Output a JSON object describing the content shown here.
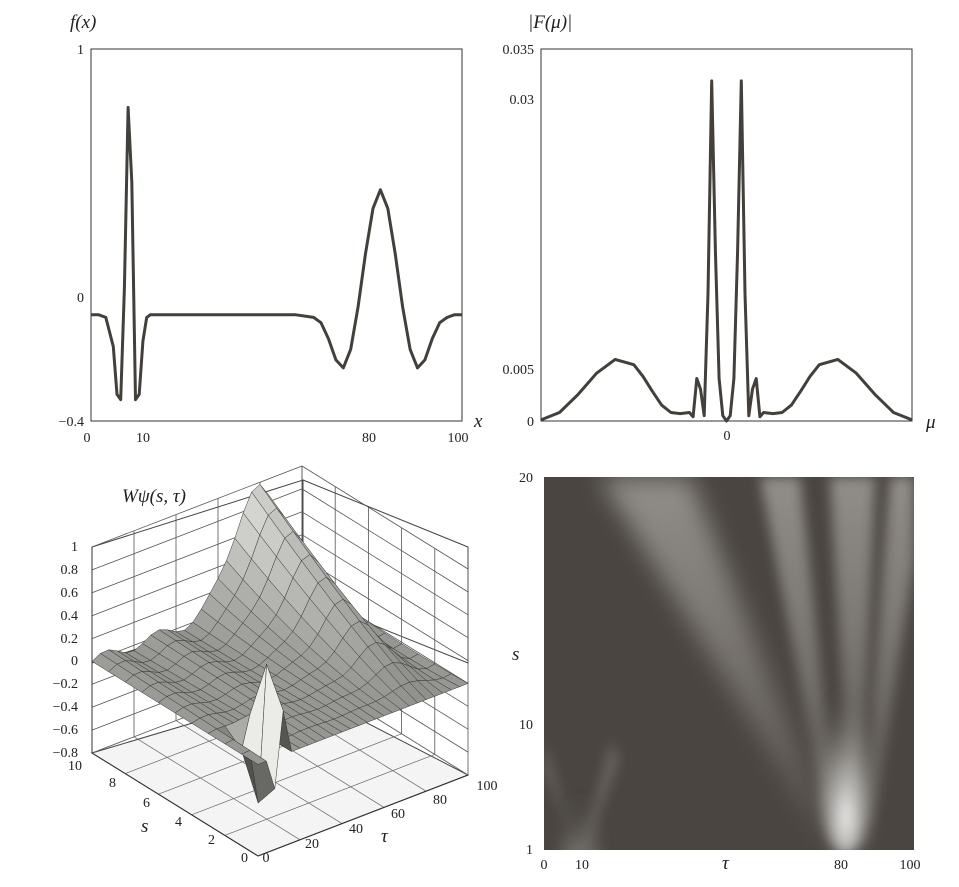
{
  "panels": {
    "signal": {
      "ylabel": "f(x)",
      "xlabel": "x",
      "yticks": [
        "1",
        "0",
        "−0.4"
      ],
      "xticks": [
        "0",
        "10",
        "80",
        "100"
      ]
    },
    "spectrum": {
      "ylabel": "|F(μ)|",
      "xlabel": "μ",
      "yticks": [
        "0.035",
        "0.03",
        "0.005",
        "0"
      ],
      "xticks": [
        "0"
      ]
    },
    "surface": {
      "zlabel": "Wψ(s, τ)",
      "zticks": [
        "1",
        "0.8",
        "0.6",
        "0.4",
        "0.2",
        "0",
        "−0.2",
        "−0.4",
        "−0.6",
        "−0.8"
      ],
      "sticks": [
        "10",
        "8",
        "6",
        "4",
        "2",
        "0"
      ],
      "tauticks": [
        "0",
        "20",
        "40",
        "60",
        "80",
        "100"
      ],
      "slabel": "s",
      "taulabel": "τ"
    },
    "heatmap": {
      "ylabel": "s",
      "xlabel": "τ",
      "yticks": [
        "20",
        "10",
        "1"
      ],
      "xticks": [
        "0",
        "10",
        "80",
        "100"
      ]
    }
  },
  "chart_data": [
    {
      "type": "line",
      "ylabel": "f(x)",
      "xlabel": "x",
      "xlim": [
        0,
        100
      ],
      "ylim": [
        -0.4,
        1
      ],
      "x": [
        0,
        2,
        4,
        6,
        7,
        8,
        9,
        10,
        11,
        12,
        13,
        14,
        15,
        16,
        18,
        20,
        30,
        40,
        50,
        55,
        60,
        62,
        64,
        66,
        68,
        70,
        72,
        74,
        76,
        78,
        80,
        82,
        84,
        86,
        88,
        90,
        92,
        94,
        96,
        98,
        100
      ],
      "y": [
        0,
        0,
        -0.01,
        -0.12,
        -0.3,
        -0.32,
        0.1,
        0.78,
        0.5,
        -0.32,
        -0.3,
        -0.1,
        -0.01,
        0,
        0,
        0,
        0,
        0,
        0,
        0,
        -0.01,
        -0.03,
        -0.09,
        -0.17,
        -0.2,
        -0.13,
        0.03,
        0.23,
        0.4,
        0.47,
        0.4,
        0.23,
        0.03,
        -0.13,
        -0.2,
        -0.17,
        -0.09,
        -0.03,
        -0.01,
        0,
        0
      ]
    },
    {
      "type": "line",
      "ylabel": "|F(μ)|",
      "xlabel": "μ",
      "ylim": [
        0,
        0.035
      ],
      "x": [
        -1,
        -0.9,
        -0.8,
        -0.7,
        -0.6,
        -0.5,
        -0.45,
        -0.4,
        -0.35,
        -0.3,
        -0.25,
        -0.2,
        -0.18,
        -0.16,
        -0.14,
        -0.12,
        -0.1,
        -0.08,
        -0.06,
        -0.04,
        -0.02,
        0,
        0.02,
        0.04,
        0.06,
        0.08,
        0.1,
        0.12,
        0.14,
        0.16,
        0.18,
        0.2,
        0.25,
        0.3,
        0.35,
        0.4,
        0.45,
        0.5,
        0.6,
        0.7,
        0.8,
        0.9,
        1
      ],
      "y": [
        0.0001,
        0.0008,
        0.0025,
        0.0045,
        0.0058,
        0.0053,
        0.0042,
        0.0028,
        0.0015,
        0.0008,
        0.0007,
        0.0008,
        0.0004,
        0.004,
        0.003,
        0.0005,
        0.012,
        0.032,
        0.016,
        0.004,
        0.0005,
        0,
        0.0005,
        0.004,
        0.016,
        0.032,
        0.012,
        0.0005,
        0.003,
        0.004,
        0.0004,
        0.0008,
        0.0007,
        0.0008,
        0.0015,
        0.0028,
        0.0042,
        0.0053,
        0.0058,
        0.0045,
        0.0025,
        0.0008,
        0.0001
      ]
    },
    {
      "type": "surface",
      "zlabel": "Wψ(s, τ)",
      "xlabel": "τ",
      "ylabel": "s",
      "xlim": [
        0,
        100
      ],
      "ylim": [
        0,
        10
      ],
      "zlim": [
        -0.8,
        1
      ]
    },
    {
      "type": "heatmap",
      "xlabel": "τ",
      "ylabel": "s",
      "xlim": [
        0,
        100
      ],
      "ylim": [
        1,
        20
      ]
    }
  ]
}
